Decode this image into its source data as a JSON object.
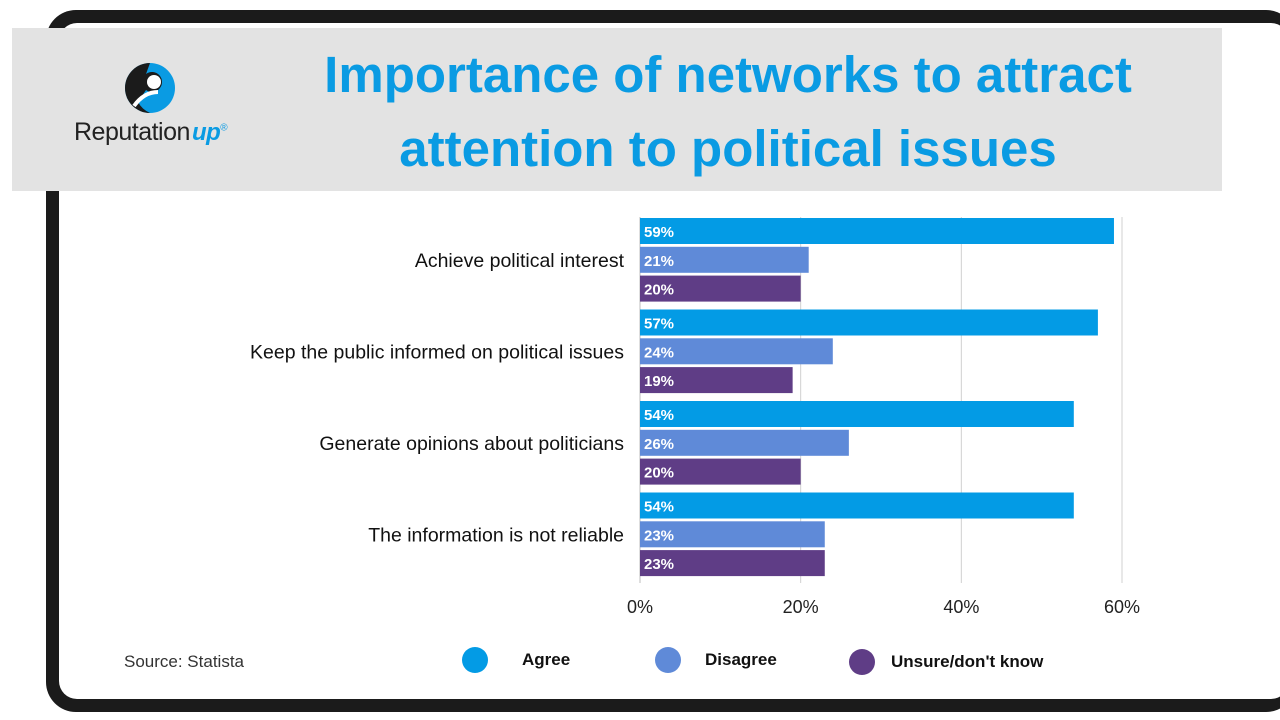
{
  "title": "Importance of networks to attract attention to political issues",
  "logo": {
    "text": "Reputation",
    "accent": "up"
  },
  "source": "Source: Statista",
  "colors": {
    "agree": "#039be5",
    "disagree": "#5f8ad8",
    "unsure": "#5f3d86",
    "title": "#0a9be3"
  },
  "chart_data": {
    "type": "bar",
    "orientation": "horizontal",
    "categories": [
      "Achieve political interest",
      "Keep the public informed on political issues",
      "Generate opinions about politicians",
      "The information is not reliable"
    ],
    "series": [
      {
        "name": "Agree",
        "values": [
          59,
          57,
          54,
          54
        ]
      },
      {
        "name": "Disagree",
        "values": [
          21,
          24,
          26,
          23
        ]
      },
      {
        "name": "Unsure/don't know",
        "values": [
          20,
          19,
          20,
          23
        ]
      }
    ],
    "data_labels": [
      [
        "59%",
        "57%",
        "54%",
        "54%"
      ],
      [
        "21%",
        "24%",
        "26%",
        "23%"
      ],
      [
        "20%",
        "19%",
        "20%",
        "23%"
      ]
    ],
    "xticks": [
      "0%",
      "20%",
      "40%",
      "60%"
    ],
    "xlim": [
      0,
      60
    ],
    "grid": true,
    "legend_position": "bottom"
  }
}
